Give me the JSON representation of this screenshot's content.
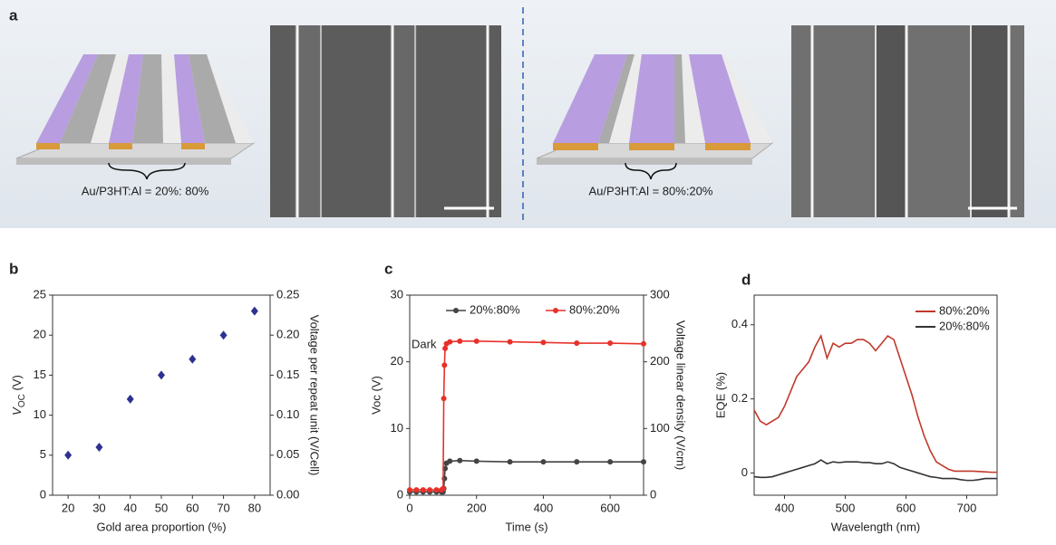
{
  "panel_a": {
    "label": "a",
    "captions": [
      "Au/P3HT:Al = 20%: 80%",
      "Au/P3HT:Al = 80%:20%"
    ]
  },
  "chart_data": [
    {
      "type": "scatter",
      "panel_label": "b",
      "x_label": "Gold area proportion (%)",
      "y_label_parts": [
        "V",
        "OC",
        " (V)"
      ],
      "y2_label": "Voltage per repeat unit (V/Cell)",
      "x": [
        20,
        30,
        40,
        50,
        60,
        70,
        80
      ],
      "series": [
        {
          "name": "VOC",
          "color": "#2e3192",
          "values": [
            5,
            6,
            12,
            15,
            17,
            20,
            23
          ]
        }
      ],
      "xlim": [
        15,
        85
      ],
      "xticks": [
        20,
        30,
        40,
        50,
        60,
        70,
        80
      ],
      "ylim": [
        0,
        25
      ],
      "yticks": [
        0,
        5,
        10,
        15,
        20,
        25
      ],
      "y2lim": [
        0,
        0.25
      ],
      "y2ticks": [
        {
          "value": 0,
          "label": "0.00"
        },
        {
          "value": 0.05,
          "label": "0.05"
        },
        {
          "value": 0.1,
          "label": "0.10"
        },
        {
          "value": 0.15,
          "label": "0.15"
        },
        {
          "value": 0.2,
          "label": "0.20"
        },
        {
          "value": 0.25,
          "label": "0.25"
        }
      ],
      "legend": false
    },
    {
      "type": "line",
      "panel_label": "c",
      "x_label": "Time (s)",
      "y_label": "Voc (V)",
      "y2_label": "Voltage linear density (V/cm)",
      "annotations": [
        "Dark"
      ],
      "markers": true,
      "x": [
        0,
        20,
        40,
        60,
        80,
        95,
        100,
        102,
        104,
        106,
        110,
        120,
        150,
        200,
        300,
        400,
        500,
        600,
        700
      ],
      "series": [
        {
          "name": "20%:80%",
          "color": "#444444",
          "values": [
            0.5,
            0.5,
            0.5,
            0.5,
            0.5,
            0.5,
            0.5,
            1,
            2.5,
            4,
            4.8,
            5.1,
            5.2,
            5.1,
            5,
            5,
            5,
            5,
            5
          ]
        },
        {
          "name": "80%:20%",
          "color": "#e8302a",
          "values": [
            0.8,
            0.8,
            0.8,
            0.8,
            0.8,
            0.8,
            1,
            14.5,
            19.5,
            22,
            22.7,
            23,
            23.1,
            23.1,
            23,
            22.9,
            22.8,
            22.8,
            22.7
          ]
        }
      ],
      "xlim": [
        0,
        700
      ],
      "xticks": [
        0,
        200,
        400,
        600
      ],
      "ylim": [
        0,
        30
      ],
      "yticks": [
        0,
        10,
        20,
        30
      ],
      "y2lim": [
        0,
        300
      ],
      "y2ticks": [
        0,
        100,
        200,
        300
      ],
      "legend": "top"
    },
    {
      "type": "line",
      "panel_label": "d",
      "x_label": "Wavelength (nm)",
      "y_label": "EQE (%)",
      "markers": false,
      "x": [
        350,
        360,
        370,
        380,
        390,
        400,
        410,
        420,
        430,
        440,
        450,
        460,
        470,
        480,
        490,
        500,
        510,
        520,
        530,
        540,
        550,
        560,
        570,
        580,
        590,
        600,
        610,
        620,
        630,
        640,
        650,
        660,
        670,
        680,
        690,
        700,
        710,
        720,
        730,
        740,
        750
      ],
      "series": [
        {
          "name": "80%:20%",
          "color": "#c0392b",
          "values": [
            0.17,
            0.14,
            0.13,
            0.14,
            0.15,
            0.18,
            0.22,
            0.26,
            0.28,
            0.3,
            0.34,
            0.37,
            0.31,
            0.35,
            0.34,
            0.35,
            0.35,
            0.36,
            0.36,
            0.35,
            0.33,
            0.35,
            0.37,
            0.36,
            0.31,
            0.26,
            0.21,
            0.15,
            0.1,
            0.06,
            0.03,
            0.02,
            0.01,
            0.005,
            0.005,
            0.005,
            0.005,
            0.004,
            0.003,
            0.002,
            0.002
          ]
        },
        {
          "name": "20%:80%",
          "color": "#333333",
          "values": [
            -0.01,
            -0.012,
            -0.012,
            -0.01,
            -0.005,
            0,
            0.005,
            0.01,
            0.015,
            0.02,
            0.025,
            0.035,
            0.025,
            0.03,
            0.028,
            0.03,
            0.03,
            0.03,
            0.028,
            0.028,
            0.025,
            0.025,
            0.03,
            0.025,
            0.015,
            0.01,
            0.005,
            0,
            -0.005,
            -0.01,
            -0.012,
            -0.015,
            -0.015,
            -0.015,
            -0.018,
            -0.02,
            -0.02,
            -0.018,
            -0.015,
            -0.015,
            -0.015
          ]
        }
      ],
      "xlim": [
        350,
        750
      ],
      "xticks": [
        400,
        500,
        600,
        700
      ],
      "ylim": [
        -0.06,
        0.48
      ],
      "yticks": [
        0,
        0.2,
        0.4
      ],
      "legend": "top-right"
    }
  ]
}
